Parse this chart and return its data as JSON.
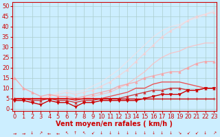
{
  "title": "",
  "xlabel": "Vent moyen/en rafales ( km/h )",
  "ylabel": "",
  "bg_color": "#cceeff",
  "grid_color": "#aacccc",
  "x_ticks": [
    0,
    1,
    2,
    3,
    4,
    5,
    6,
    7,
    8,
    9,
    10,
    11,
    12,
    13,
    14,
    15,
    16,
    17,
    18,
    19,
    20,
    21,
    22,
    23
  ],
  "y_ticks": [
    0,
    5,
    10,
    15,
    20,
    25,
    30,
    35,
    40,
    45,
    50
  ],
  "xlim": [
    -0.3,
    23.3
  ],
  "ylim": [
    -1,
    52
  ],
  "lines": [
    {
      "x": [
        0,
        1,
        2,
        3,
        4,
        5,
        6,
        7,
        8,
        9,
        10,
        11,
        12,
        13,
        14,
        15,
        16,
        17,
        18,
        19,
        20,
        21,
        22,
        23
      ],
      "y": [
        5,
        5,
        5,
        5,
        5,
        5,
        5,
        5,
        5,
        5,
        5,
        5,
        5,
        5,
        5,
        5,
        5,
        5,
        5,
        5,
        5,
        5,
        5,
        5
      ],
      "color": "#cc0000",
      "lw": 1.0,
      "marker": "+",
      "ms": 3.5,
      "alpha": 1.0,
      "zorder": 5
    },
    {
      "x": [
        0,
        1,
        2,
        3,
        4,
        5,
        6,
        7,
        8,
        9,
        10,
        11,
        12,
        13,
        14,
        15,
        16,
        17,
        18,
        19,
        20,
        21,
        22,
        23
      ],
      "y": [
        4,
        4,
        3,
        2,
        4,
        3,
        3,
        1,
        3,
        3,
        4,
        4,
        4,
        4,
        4,
        5,
        6,
        7,
        7,
        7,
        9,
        9,
        10,
        10
      ],
      "color": "#cc0000",
      "lw": 1.0,
      "marker": "v",
      "ms": 3,
      "alpha": 1.0,
      "zorder": 5
    },
    {
      "x": [
        0,
        1,
        2,
        3,
        4,
        5,
        6,
        7,
        8,
        9,
        10,
        11,
        12,
        13,
        14,
        15,
        16,
        17,
        18,
        19,
        20,
        21,
        22,
        23
      ],
      "y": [
        5,
        5,
        4,
        4,
        5,
        4,
        4,
        3,
        4,
        4,
        5,
        5,
        5,
        6,
        7,
        8,
        9,
        9,
        10,
        10,
        9,
        9,
        10,
        10
      ],
      "color": "#cc2222",
      "lw": 1.0,
      "marker": "^",
      "ms": 2.5,
      "alpha": 0.85,
      "zorder": 4
    },
    {
      "x": [
        0,
        1,
        2,
        3,
        4,
        5,
        6,
        7,
        8,
        9,
        10,
        11,
        12,
        13,
        14,
        15,
        16,
        17,
        18,
        19,
        20,
        21,
        22,
        23
      ],
      "y": [
        5,
        5,
        5,
        5,
        5,
        5,
        5,
        4,
        5,
        5,
        5,
        6,
        7,
        8,
        10,
        10,
        12,
        13,
        13,
        13,
        12,
        11,
        10,
        10
      ],
      "color": "#ee4444",
      "lw": 1.0,
      "marker": null,
      "ms": 0,
      "alpha": 0.9,
      "zorder": 4
    },
    {
      "x": [
        0,
        1,
        2,
        3,
        4,
        5,
        6,
        7,
        8,
        9,
        10,
        11,
        12,
        13,
        14,
        15,
        16,
        17,
        18,
        19,
        20,
        21,
        22,
        23
      ],
      "y": [
        15,
        10,
        8,
        6,
        7,
        6,
        6,
        5,
        6,
        7,
        8,
        9,
        11,
        12,
        13,
        15,
        16,
        17,
        18,
        18,
        20,
        22,
        23,
        23
      ],
      "color": "#ff9999",
      "lw": 1.0,
      "marker": "^",
      "ms": 2.5,
      "alpha": 0.75,
      "zorder": 3
    },
    {
      "x": [
        0,
        1,
        2,
        3,
        4,
        5,
        6,
        7,
        8,
        9,
        10,
        11,
        12,
        13,
        14,
        15,
        16,
        17,
        18,
        19,
        20,
        21,
        22,
        23
      ],
      "y": [
        5,
        5,
        5,
        5,
        5,
        5,
        5,
        5,
        5,
        6,
        7,
        8,
        10,
        12,
        15,
        18,
        22,
        25,
        27,
        28,
        30,
        31,
        32,
        32
      ],
      "color": "#ffbbbb",
      "lw": 1.0,
      "marker": null,
      "ms": 0,
      "alpha": 0.75,
      "zorder": 2
    },
    {
      "x": [
        0,
        1,
        2,
        3,
        4,
        5,
        6,
        7,
        8,
        9,
        10,
        11,
        12,
        13,
        14,
        15,
        16,
        17,
        18,
        19,
        20,
        21,
        22,
        23
      ],
      "y": [
        5,
        5,
        5,
        5,
        6,
        7,
        8,
        7,
        8,
        9,
        11,
        13,
        16,
        19,
        23,
        27,
        31,
        35,
        38,
        40,
        43,
        45,
        46,
        47
      ],
      "color": "#ffcccc",
      "lw": 1.0,
      "marker": "^",
      "ms": 2.5,
      "alpha": 0.65,
      "zorder": 1
    },
    {
      "x": [
        0,
        1,
        2,
        3,
        4,
        5,
        6,
        7,
        8,
        9,
        10,
        11,
        12,
        13,
        14,
        15,
        16,
        17,
        18,
        19,
        20,
        21,
        22,
        23
      ],
      "y": [
        5,
        5,
        5,
        5,
        6,
        8,
        9,
        8,
        9,
        11,
        13,
        16,
        19,
        23,
        27,
        31,
        35,
        38,
        40,
        41,
        43,
        44,
        46,
        48
      ],
      "color": "#ffdddd",
      "lw": 1.0,
      "marker": null,
      "ms": 0,
      "alpha": 0.55,
      "zorder": 1
    }
  ],
  "xlabel_color": "#cc0000",
  "tick_color": "#cc0000",
  "xlabel_fontsize": 7,
  "tick_fontsize": 6,
  "arrow_chars": [
    "→",
    "→",
    "↓",
    "↗",
    "←",
    "←",
    "↖",
    "↑",
    "↖",
    "↙",
    "↓",
    "↓",
    "↓",
    "↓",
    "↓",
    "↓",
    "↓",
    "↓",
    "↓",
    "↘",
    "↙",
    "↙",
    "↓",
    "↗"
  ]
}
